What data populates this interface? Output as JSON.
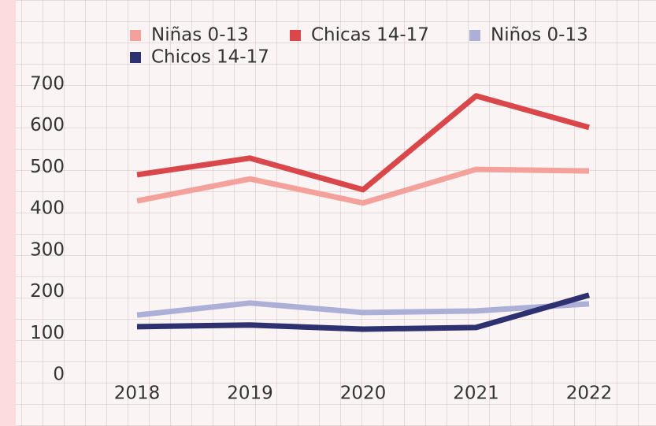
{
  "chart_data": {
    "type": "line",
    "categories": [
      "2018",
      "2019",
      "2020",
      "2021",
      "2022"
    ],
    "series": [
      {
        "name": "Niñas 0-13",
        "color": "#f4a19b",
        "values": [
          419,
          472,
          414,
          495,
          491
        ]
      },
      {
        "name": "Chicas 14-17",
        "color": "#d9474a",
        "values": [
          482,
          522,
          446,
          672,
          596
        ]
      },
      {
        "name": "Niños 0-13",
        "color": "#adb0d6",
        "values": [
          144,
          173,
          150,
          154,
          171
        ]
      },
      {
        "name": "Chicos 14-17",
        "color": "#2e3170",
        "values": [
          116,
          120,
          110,
          114,
          192
        ]
      }
    ],
    "ylim": [
      0,
      700
    ],
    "yticks": [
      0,
      100,
      200,
      300,
      400,
      500,
      600,
      700
    ]
  }
}
